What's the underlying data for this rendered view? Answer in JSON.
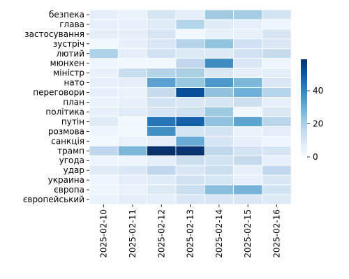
{
  "chart_data": {
    "type": "heatmap",
    "rows": [
      "безпека",
      "глава",
      "застосування",
      "зустріч",
      "лютий",
      "мюнхен",
      "міністр",
      "нато",
      "переговори",
      "план",
      "політика",
      "путін",
      "розмова",
      "санкція",
      "трамп",
      "угода",
      "удар",
      "украина",
      "європа",
      "європейський"
    ],
    "columns": [
      "2025-02-10",
      "2025-02-11",
      "2025-02-12",
      "2025-02-13",
      "2025-02-14",
      "2025-02-15",
      "2025-02-16"
    ],
    "values": [
      [
        6,
        4,
        10,
        6,
        22,
        21,
        11
      ],
      [
        5,
        5,
        7,
        18,
        7,
        5,
        3
      ],
      [
        6,
        6,
        10,
        2,
        5,
        5,
        10
      ],
      [
        2,
        5,
        9,
        18,
        24,
        12,
        9
      ],
      [
        19,
        6,
        12,
        8,
        8,
        12,
        15
      ],
      [
        3,
        2,
        2,
        16,
        38,
        9,
        3
      ],
      [
        4,
        14,
        18,
        20,
        9,
        5,
        6
      ],
      [
        5,
        6,
        33,
        23,
        35,
        27,
        9
      ],
      [
        5,
        4,
        15,
        52,
        24,
        29,
        18
      ],
      [
        4,
        5,
        11,
        9,
        10,
        13,
        5
      ],
      [
        5,
        7,
        10,
        12,
        22,
        2,
        9
      ],
      [
        7,
        2,
        43,
        48,
        24,
        32,
        17
      ],
      [
        3,
        2,
        37,
        10,
        11,
        4,
        6
      ],
      [
        1,
        4,
        6,
        30,
        10,
        5,
        3
      ],
      [
        16,
        27,
        59,
        58,
        16,
        11,
        10
      ],
      [
        3,
        3,
        6,
        13,
        11,
        15,
        5
      ],
      [
        7,
        9,
        16,
        9,
        13,
        5,
        16
      ],
      [
        3,
        6,
        7,
        12,
        10,
        5,
        9
      ],
      [
        3,
        4,
        8,
        14,
        25,
        28,
        11
      ],
      [
        4,
        6,
        6,
        9,
        9,
        9,
        8
      ]
    ],
    "colorbar": {
      "min": 0,
      "max": 59,
      "ticks": [
        0,
        20,
        40
      ],
      "scheme": "Blues"
    }
  }
}
